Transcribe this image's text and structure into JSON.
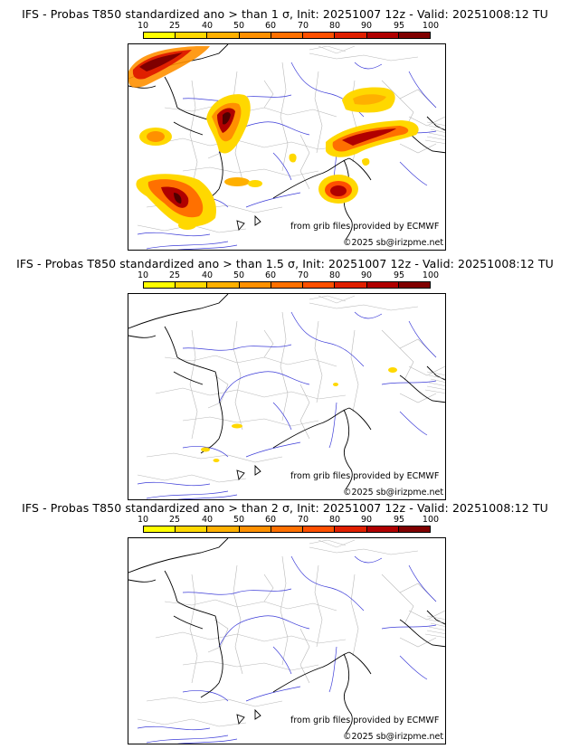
{
  "colorbar": {
    "ticks": [
      "10",
      "25",
      "40",
      "50",
      "60",
      "70",
      "80",
      "90",
      "95",
      "100"
    ],
    "colors": [
      "#ffff00",
      "#ffd800",
      "#ffb000",
      "#ff9000",
      "#ff7000",
      "#ff5000",
      "#e02000",
      "#b00000",
      "#800000",
      "#500000"
    ]
  },
  "panels": [
    {
      "title": "IFS - Probas T850  standardized ano > than 1 σ, Init: 20251007 12z - Valid: 20251008:12 TU",
      "source": "from grib files provided by ECMWF",
      "copyright": "©2025 sb@irizpme.net"
    },
    {
      "title": "IFS - Probas T850  standardized ano > than 1.5 σ, Init: 20251007 12z - Valid: 20251008:12 TU",
      "source": "from grib files provided by ECMWF",
      "copyright": "©2025 sb@irizpme.net"
    },
    {
      "title": "IFS - Probas T850  standardized ano > than 2 σ, Init: 20251007 12z - Valid: 20251008:12 TU",
      "source": "from grib files provided by ECMWF",
      "copyright": "©2025 sb@irizpme.net"
    }
  ]
}
